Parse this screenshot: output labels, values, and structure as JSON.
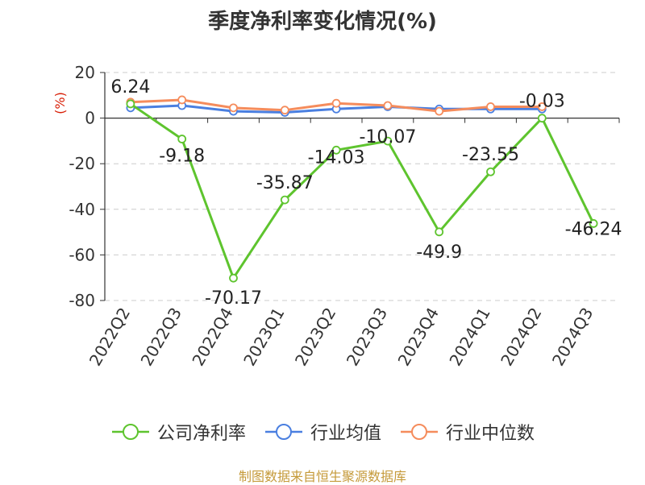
{
  "title": "季度净利率变化情况(%)",
  "source_note": "制图数据来自恒生聚源数据库",
  "colors": {
    "company": "#5ec42e",
    "industry_avg": "#4a7fe0",
    "industry_median": "#f58c5c",
    "axis_label": "#d81e06"
  },
  "chart_data": {
    "type": "line",
    "title": "季度净利率变化情况(%)",
    "xlabel": "",
    "ylabel": "(%)",
    "ylim": [
      -80,
      20
    ],
    "yticks": [
      20,
      0,
      -20,
      -40,
      -60,
      -80
    ],
    "grid": true,
    "legend_position": "bottom",
    "categories": [
      "2022Q2",
      "2022Q3",
      "2022Q4",
      "2023Q1",
      "2023Q2",
      "2023Q3",
      "2023Q4",
      "2024Q1",
      "2024Q2",
      "2024Q3"
    ],
    "series": [
      {
        "name": "公司净利率",
        "color": "#5ec42e",
        "values": [
          6.24,
          -9.18,
          -70.17,
          -35.87,
          -14.03,
          -10.07,
          -49.9,
          -23.55,
          -0.03,
          -46.24
        ],
        "labels": [
          "6.24",
          "-9.18",
          "-70.17",
          "-35.87",
          "-14.03",
          "-10.07",
          "-49.9",
          "-23.55",
          "-0.03",
          "-46.24"
        ]
      },
      {
        "name": "行业均值",
        "color": "#4a7fe0",
        "values": [
          4.5,
          5.5,
          3.0,
          2.5,
          4.0,
          5.0,
          4.0,
          4.0,
          4.0,
          null
        ]
      },
      {
        "name": "行业中位数",
        "color": "#f58c5c",
        "values": [
          7.0,
          8.0,
          4.5,
          3.5,
          6.5,
          5.5,
          3.0,
          5.0,
          5.0,
          null
        ]
      }
    ]
  }
}
